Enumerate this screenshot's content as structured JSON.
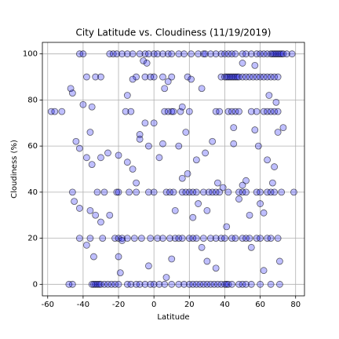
{
  "chart_data": {
    "type": "scatter",
    "title": "City Latitude vs. Cloudiness (11/19/2019)",
    "xlabel": "Latitude",
    "ylabel": "Cloudiness (%)",
    "color": "#0000ff",
    "edgecolor": "#000000",
    "grid": true,
    "xlim": [
      -63,
      85
    ],
    "ylim": [
      -5,
      105
    ],
    "xticks": [
      -60,
      -40,
      -20,
      0,
      20,
      40,
      60,
      80
    ],
    "yticks": [
      0,
      20,
      40,
      60,
      80,
      100
    ],
    "x": [
      -42,
      -40,
      -25,
      -23,
      -21,
      -18,
      -15,
      -12,
      -8,
      -5,
      -3,
      0,
      2,
      5,
      8,
      10,
      14,
      17,
      21,
      25,
      28,
      29,
      32,
      35,
      38,
      40,
      42,
      44,
      46,
      50,
      52,
      55,
      58,
      60,
      62,
      64,
      66,
      67,
      68,
      69,
      70,
      71,
      72,
      73,
      75,
      78,
      -33,
      -30,
      -38,
      -10,
      -5,
      -2,
      0,
      5,
      10,
      19,
      38,
      40,
      41,
      42,
      43,
      44,
      45,
      46,
      47,
      48,
      50,
      52,
      54,
      56,
      58,
      60,
      62,
      64,
      66,
      68,
      70,
      -58,
      -56,
      -16,
      -13,
      6,
      8,
      10,
      11,
      15,
      20,
      35,
      37,
      42,
      44,
      46,
      48,
      55,
      58,
      62,
      64,
      66,
      68,
      70,
      -46,
      -35,
      -34,
      -33,
      -32,
      -31,
      -30,
      -28,
      -26,
      -24,
      -22,
      -20,
      -15,
      -13,
      -10,
      -8,
      -5,
      -2,
      0,
      3,
      6,
      10,
      14,
      17,
      20,
      22,
      24,
      26,
      28,
      30,
      32,
      34,
      36,
      38,
      40,
      41,
      42,
      44,
      48,
      50,
      52,
      55,
      60,
      66,
      71,
      -46,
      -32,
      -28,
      -21,
      -20,
      -14,
      -10,
      -3,
      0,
      7,
      9,
      11,
      16,
      18,
      20,
      22,
      24,
      28,
      31,
      33,
      35,
      37,
      42,
      48,
      50,
      52,
      58,
      60,
      64,
      66,
      68,
      72,
      79,
      -42,
      -36,
      -29,
      -22,
      -20,
      -18,
      -15,
      -11,
      -7,
      -2,
      2,
      5,
      9,
      12,
      14,
      16,
      20,
      22,
      24,
      28,
      32,
      35,
      38,
      40,
      44,
      46,
      50,
      52,
      54,
      58,
      60,
      64,
      66,
      70,
      -47,
      -46,
      -40,
      -35,
      -36,
      -44,
      -42,
      -35,
      -38,
      -30,
      -26,
      -20,
      -45,
      -42,
      -36,
      -33,
      -25,
      -38,
      -34,
      -30,
      -20,
      -19,
      -15,
      -12,
      -10,
      -8,
      -5,
      -3,
      -15,
      -12,
      -8,
      0,
      3,
      5,
      6,
      8,
      14,
      16,
      18,
      21,
      24,
      27,
      29,
      30,
      33,
      36,
      39,
      41,
      45,
      45,
      48,
      50,
      55,
      57,
      59,
      60,
      62,
      62,
      64,
      67,
      68,
      70,
      71,
      73,
      65,
      69,
      57,
      50,
      52,
      54,
      25,
      22,
      27,
      30,
      35,
      10,
      7,
      -3,
      12,
      16,
      19,
      -6,
      -4,
      -18,
      -48,
      -52
    ],
    "values": [
      100,
      100,
      100,
      100,
      100,
      100,
      100,
      100,
      100,
      100,
      100,
      100,
      100,
      100,
      100,
      100,
      100,
      100,
      100,
      100,
      100,
      100,
      100,
      100,
      100,
      100,
      100,
      100,
      100,
      100,
      100,
      100,
      100,
      100,
      100,
      100,
      100,
      100,
      100,
      100,
      100,
      100,
      100,
      100,
      100,
      100,
      90,
      90,
      90,
      90,
      90,
      90,
      90,
      90,
      90,
      90,
      90,
      90,
      90,
      90,
      90,
      90,
      90,
      90,
      90,
      90,
      90,
      90,
      90,
      90,
      90,
      90,
      90,
      90,
      90,
      90,
      90,
      75,
      75,
      75,
      75,
      75,
      75,
      75,
      75,
      75,
      75,
      75,
      75,
      75,
      75,
      75,
      75,
      75,
      75,
      75,
      75,
      75,
      75,
      75,
      0,
      0,
      0,
      0,
      0,
      0,
      0,
      0,
      0,
      0,
      0,
      0,
      0,
      0,
      0,
      0,
      0,
      0,
      0,
      0,
      0,
      0,
      0,
      0,
      0,
      0,
      0,
      0,
      0,
      0,
      0,
      0,
      0,
      0,
      0,
      0,
      0,
      0,
      0,
      0,
      0,
      0,
      0,
      0,
      0,
      40,
      40,
      40,
      40,
      40,
      40,
      40,
      40,
      40,
      40,
      40,
      40,
      40,
      40,
      40,
      40,
      40,
      40,
      40,
      40,
      40,
      40,
      40,
      40,
      40,
      40,
      40,
      40,
      40,
      40,
      40,
      40,
      40,
      20,
      20,
      20,
      20,
      20,
      20,
      20,
      20,
      20,
      20,
      20,
      20,
      20,
      20,
      20,
      20,
      20,
      20,
      20,
      20,
      20,
      20,
      20,
      20,
      20,
      20,
      20,
      20,
      20,
      20,
      20,
      20,
      20,
      20,
      85,
      83,
      78,
      77,
      66,
      62,
      59,
      52,
      55,
      55,
      57,
      56,
      36,
      33,
      32,
      30,
      30,
      17,
      12,
      27,
      12,
      5,
      53,
      50,
      44,
      65,
      70,
      60,
      82,
      89,
      63,
      70,
      55,
      61,
      85,
      88,
      60,
      77,
      66,
      89,
      54,
      85,
      57,
      32,
      62,
      44,
      42,
      25,
      68,
      61,
      37,
      43,
      16,
      67,
      60,
      35,
      31,
      6,
      54,
      44,
      51,
      66,
      10,
      68,
      82,
      79,
      95,
      96,
      45,
      30,
      35,
      29,
      16,
      10,
      7,
      11,
      3,
      8,
      32,
      46,
      48,
      97,
      96,
      19,
      0,
      75
    ]
  }
}
